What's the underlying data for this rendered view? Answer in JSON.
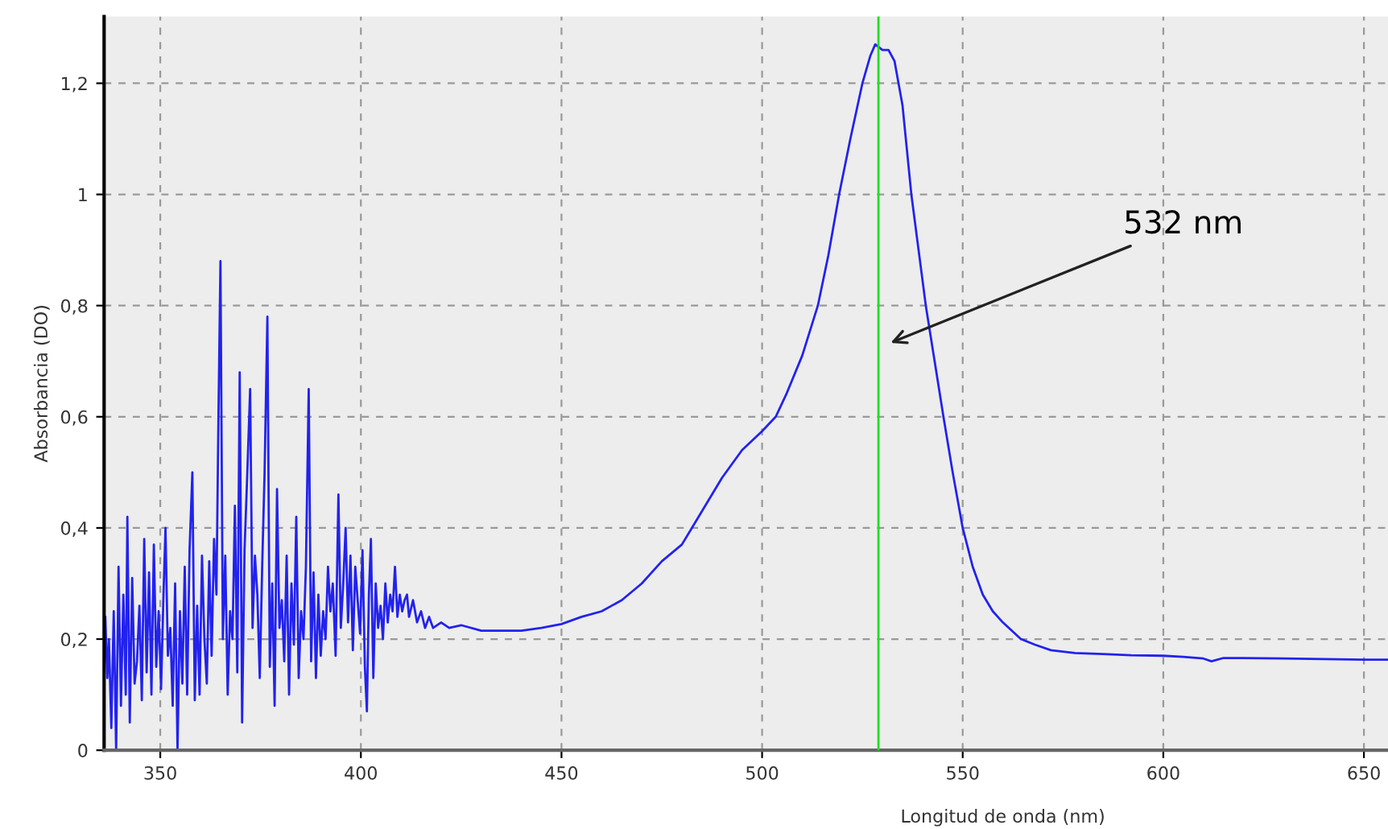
{
  "chart_data": {
    "type": "line",
    "xlabel": "Longitud de onda (nm)",
    "ylabel": "Absorbancia (DO)",
    "xlim": [
      336,
      656
    ],
    "ylim": [
      0,
      1.32
    ],
    "xticks": [
      350,
      400,
      450,
      500,
      550,
      600,
      650
    ],
    "yticks": [
      {
        "value": 0,
        "label": "0"
      },
      {
        "value": 0.2,
        "label": "0,2"
      },
      {
        "value": 0.4,
        "label": "0,4"
      },
      {
        "value": 0.6,
        "label": "0,6"
      },
      {
        "value": 0.8,
        "label": "0,8"
      },
      {
        "value": 1,
        "label": "1"
      },
      {
        "value": 1.2,
        "label": "1,2"
      }
    ],
    "grid": true,
    "line_style": "solid",
    "marker": "none",
    "ref_lines": [
      {
        "axis": "x",
        "value": 529,
        "color": "#22dd22"
      }
    ],
    "annotations": [
      {
        "text": "532 nm",
        "x": 531,
        "y": 0.73
      }
    ],
    "series": [
      {
        "color": "#2222ee",
        "x": [
          336.3,
          336.8,
          337.2,
          337.8,
          338.4,
          339,
          339.6,
          340.2,
          340.8,
          341.4,
          341.8,
          342.4,
          343,
          343.6,
          344.2,
          344.8,
          345.4,
          346,
          346.6,
          347.2,
          347.8,
          348.4,
          349,
          349.6,
          350.2,
          350.8,
          351.3,
          351.9,
          352.5,
          353.1,
          353.7,
          354.3,
          354.9,
          355.5,
          356.1,
          356.7,
          357.3,
          358,
          358.6,
          359.2,
          359.8,
          360.4,
          361,
          361.6,
          362.2,
          362.8,
          363.4,
          364,
          364.5,
          365,
          365.6,
          366.2,
          366.8,
          367.4,
          368,
          368.6,
          369.2,
          369.8,
          370.4,
          371,
          371.6,
          372.4,
          373,
          373.6,
          374.2,
          374.8,
          375.4,
          376,
          376.7,
          377.3,
          377.9,
          378.5,
          379.1,
          379.7,
          380.3,
          380.9,
          381.5,
          382.1,
          382.7,
          383.3,
          383.9,
          384.5,
          385.1,
          385.7,
          386.3,
          387,
          387.6,
          388.2,
          388.8,
          389.4,
          390,
          390.6,
          391.2,
          391.8,
          392.4,
          393,
          393.7,
          394.4,
          395,
          395.6,
          396.2,
          396.8,
          397.4,
          398,
          398.6,
          399.2,
          399.8,
          400.4,
          401,
          401.5,
          402,
          402.5,
          403.1,
          403.7,
          404.3,
          404.9,
          405.5,
          406.1,
          406.7,
          407.3,
          407.9,
          408.5,
          409.1,
          409.7,
          410.3,
          410.9,
          411.5,
          412,
          413,
          414,
          415,
          416,
          417,
          418,
          420,
          422,
          425,
          430,
          435,
          440,
          445,
          450,
          455,
          460,
          465,
          470,
          475,
          480,
          482.5,
          485,
          490,
          495,
          500,
          503.4,
          506,
          510,
          513.9,
          516.5,
          519.2,
          522,
          525,
          527,
          528.2,
          530,
          531.5,
          533,
          535,
          537.2,
          539,
          540.8,
          543,
          545.2,
          547.5,
          550,
          552.5,
          555,
          557.5,
          560,
          564.5,
          568,
          572,
          578,
          585,
          592,
          600,
          605,
          610,
          612,
          615,
          620,
          630,
          640,
          650,
          656
        ],
        "values": [
          0.24,
          0.13,
          0.2,
          0.04,
          0.25,
          0.0,
          0.33,
          0.08,
          0.28,
          0.1,
          0.42,
          0.05,
          0.31,
          0.12,
          0.16,
          0.26,
          0.09,
          0.38,
          0.14,
          0.32,
          0.1,
          0.37,
          0.15,
          0.25,
          0.11,
          0.28,
          0.4,
          0.17,
          0.22,
          0.08,
          0.3,
          0.0,
          0.25,
          0.12,
          0.33,
          0.1,
          0.36,
          0.5,
          0.09,
          0.26,
          0.1,
          0.35,
          0.2,
          0.12,
          0.34,
          0.17,
          0.38,
          0.28,
          0.6,
          0.88,
          0.2,
          0.35,
          0.1,
          0.25,
          0.2,
          0.44,
          0.14,
          0.68,
          0.05,
          0.36,
          0.48,
          0.65,
          0.22,
          0.35,
          0.28,
          0.13,
          0.33,
          0.5,
          0.78,
          0.15,
          0.3,
          0.08,
          0.47,
          0.22,
          0.27,
          0.16,
          0.35,
          0.1,
          0.3,
          0.19,
          0.42,
          0.13,
          0.25,
          0.2,
          0.33,
          0.65,
          0.16,
          0.32,
          0.13,
          0.28,
          0.17,
          0.25,
          0.2,
          0.33,
          0.25,
          0.3,
          0.17,
          0.46,
          0.22,
          0.3,
          0.4,
          0.23,
          0.35,
          0.18,
          0.33,
          0.27,
          0.21,
          0.36,
          0.15,
          0.07,
          0.28,
          0.38,
          0.13,
          0.3,
          0.22,
          0.26,
          0.2,
          0.3,
          0.23,
          0.28,
          0.25,
          0.33,
          0.24,
          0.28,
          0.25,
          0.27,
          0.28,
          0.24,
          0.27,
          0.23,
          0.25,
          0.22,
          0.24,
          0.22,
          0.23,
          0.22,
          0.225,
          0.215,
          0.215,
          0.215,
          0.22,
          0.227,
          0.24,
          0.25,
          0.27,
          0.3,
          0.34,
          0.37,
          0.4,
          0.43,
          0.49,
          0.54,
          0.574,
          0.6,
          0.64,
          0.71,
          0.8,
          0.89,
          1.0,
          1.1,
          1.2,
          1.25,
          1.27,
          1.26,
          1.26,
          1.24,
          1.16,
          1.0,
          0.9,
          0.8,
          0.7,
          0.6,
          0.5,
          0.4,
          0.33,
          0.28,
          0.25,
          0.23,
          0.2,
          0.19,
          0.18,
          0.175,
          0.173,
          0.171,
          0.17,
          0.168,
          0.165,
          0.16,
          0.166,
          0.166,
          0.165,
          0.164,
          0.163,
          0.163
        ]
      }
    ]
  }
}
